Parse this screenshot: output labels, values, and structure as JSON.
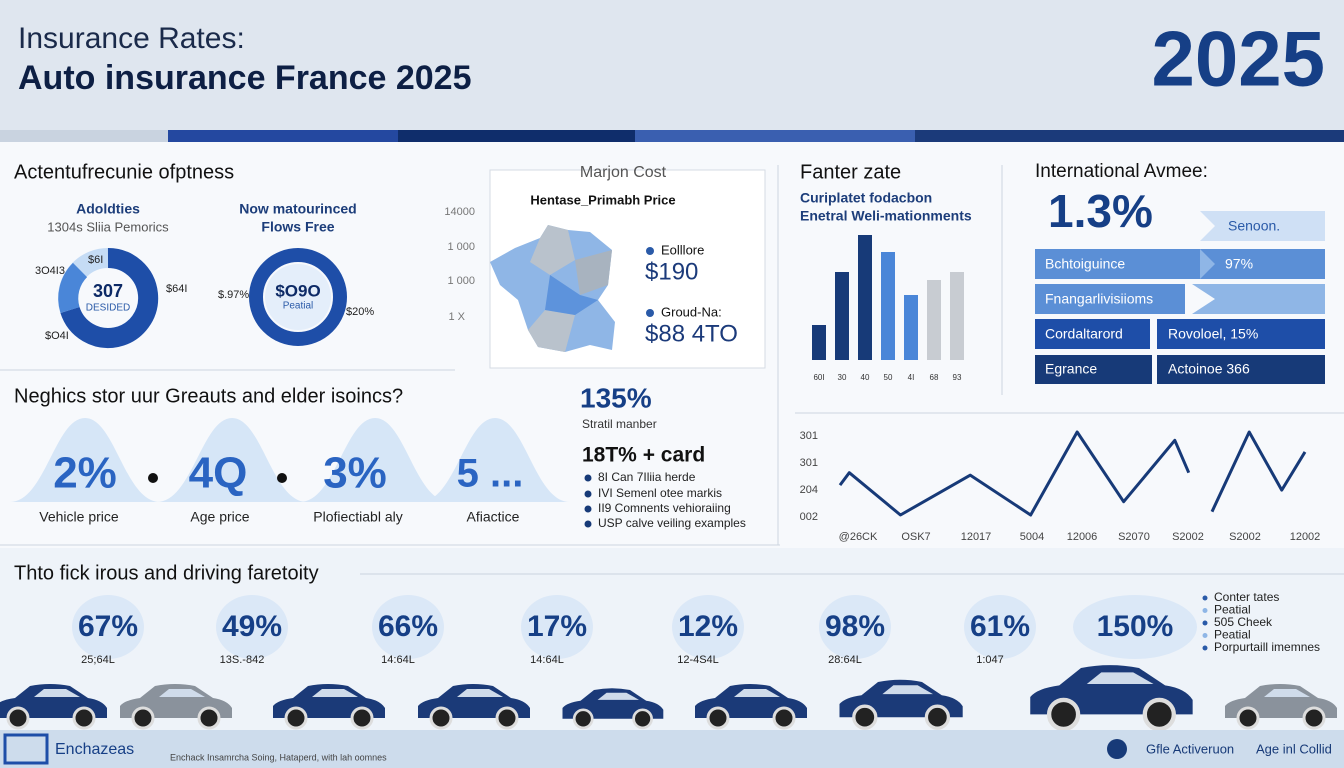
{
  "header": {
    "subtitle": "Insurance Rates:",
    "title": "Auto insurance France 2025",
    "year": "2025"
  },
  "segment": {
    "title": "Actentufrecunie ofptness",
    "donuts": [
      {
        "heading": "Adoldties",
        "subheading": "1304s Sliia Pemorics",
        "center": "307",
        "center_sub": "DESIDED",
        "labels": [
          "3O4I3",
          "$6I",
          "$64I",
          "$O4I"
        ]
      },
      {
        "heading": "Now matourinced",
        "subheading": "Flows Free",
        "center": "$O9O",
        "center_sub": "Peatial",
        "labels": [
          "$.97%",
          "$20%"
        ]
      }
    ]
  },
  "map": {
    "title": "Marjon Cost",
    "subtitle": "Hentase_Primabh Price",
    "scale": [
      "14000",
      "1 000",
      "1 000",
      "1 X"
    ],
    "legend": [
      {
        "label": "Eolllore",
        "value": "$190"
      },
      {
        "label": "Groud-Na:",
        "value": "$88 4TO"
      }
    ]
  },
  "bars": {
    "title": "Fanter zate",
    "subtitle": [
      "Curiplatet fodacbon",
      "Enetral Weli-mationments"
    ],
    "categories": [
      "60I",
      "30",
      "40",
      "50",
      "4I",
      "68",
      "93"
    ],
    "values": [
      35,
      88,
      125,
      108,
      65,
      80,
      88
    ],
    "ylim": [
      0,
      130
    ],
    "colors": [
      "#173a78",
      "#173a78",
      "#173a78",
      "#4a86d8",
      "#4a86d8",
      "#c8ccd2",
      "#c8ccd2"
    ]
  },
  "international": {
    "title": "International Avmee:",
    "headline": "1.3%",
    "rows": [
      [
        "Senoon."
      ],
      [
        "Bchtoiguince",
        "97%"
      ],
      [
        "Fnangarlivisiioms"
      ],
      [
        "Cordaltarord",
        "Rovoloel, 15%"
      ],
      [
        "Egrance",
        "Actoinoe 366"
      ]
    ]
  },
  "question": {
    "title": "Neghics stor uur Greauts and elder isoincs?",
    "items": [
      {
        "value": "2%",
        "label": "Vehicle price"
      },
      {
        "value": "4Q",
        "label": "Age price"
      },
      {
        "value": "3%",
        "label": "Plofiectiabl aly"
      },
      {
        "value": "5 ...",
        "label": "Afiactice"
      }
    ]
  },
  "stats": {
    "headline": "135%",
    "caption": "Stratil manber",
    "sub": "18T% + card",
    "list": [
      "8I Can 7Iliia herde",
      "IVI Semenl otee markis",
      "II9 Comnents vehioraiing",
      "USP calve veiling examples"
    ]
  },
  "line": {
    "y_labels": [
      "301",
      "301",
      "204",
      "002"
    ],
    "x_labels": [
      "@26CK",
      "OSK7",
      "12017",
      "5004",
      "12006",
      "S2070",
      "S2002",
      "S2002",
      "12002"
    ],
    "x": [
      0,
      2,
      13,
      28,
      41,
      51,
      61,
      72,
      75,
      null,
      80,
      88,
      95,
      100
    ],
    "values": [
      36,
      51,
      0,
      48,
      0,
      100,
      16,
      90,
      51,
      null,
      4,
      100,
      30,
      76
    ],
    "xlim": [
      0,
      100
    ],
    "ylim": [
      0,
      100
    ],
    "color": "#173a78"
  },
  "bottom": {
    "title": "Thto fick irous and driving faretoity",
    "items": [
      {
        "value": "67%",
        "label": "25;64L"
      },
      {
        "value": "49%",
        "label": "13S.-842"
      },
      {
        "value": "66%",
        "label": "14:64L"
      },
      {
        "value": "17%",
        "label": "14:64L"
      },
      {
        "value": "12%",
        "label": "12-4S4L"
      },
      {
        "value": "98%",
        "label": "28:64L"
      },
      {
        "value": "61%",
        "label": "1:047"
      },
      {
        "value": "150%"
      }
    ],
    "legend": [
      "Conter tates",
      "Peatial",
      "505 Cheek",
      "Peatial",
      "Porpurtaill imemnes"
    ]
  },
  "footer": {
    "brand": "Enchazeas",
    "note": "Enchack Insamrcha Soing, Hataperd, with lah oomnes",
    "right1": "Gfle Activeruon",
    "right2": "Age inl Collid"
  }
}
